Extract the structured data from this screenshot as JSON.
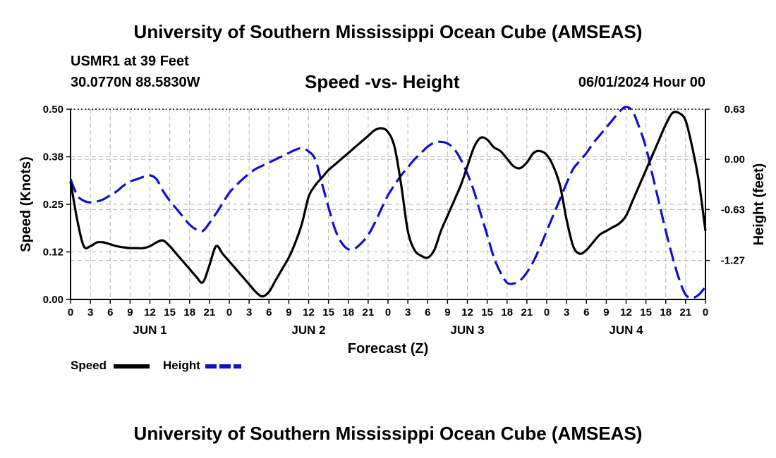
{
  "header": {
    "title": "University of Southern Mississippi Ocean Cube (AMSEAS)",
    "station": "USMR1 at 39 Feet",
    "coords": "30.0770N  88.5830W",
    "chart_title": "Speed -vs- Height",
    "date": "06/01/2024 Hour 00"
  },
  "footer": {
    "title": "University of Southern Mississippi Ocean Cube (AMSEAS)"
  },
  "legend": {
    "speed": "Speed",
    "height": "Height"
  },
  "colors": {
    "speed": "#000000",
    "height": "#1010cc",
    "grid": "#b4b4b4"
  },
  "chart_data": {
    "type": "line",
    "xlabel": "Forecast (Z)",
    "ylabel": "Speed (Knots)",
    "y2label": "Height (feet)",
    "xlim": [
      0,
      96
    ],
    "ylim": [
      0,
      0.5
    ],
    "y2lim": [
      -1.76,
      0.63
    ],
    "x_tick_labels": [
      "0",
      "3",
      "6",
      "9",
      "12",
      "15",
      "18",
      "21",
      "0",
      "3",
      "6",
      "9",
      "12",
      "15",
      "18",
      "21",
      "0",
      "3",
      "6",
      "9",
      "12",
      "15",
      "18",
      "21",
      "0",
      "3",
      "6",
      "9",
      "12",
      "15",
      "18",
      "21",
      "0"
    ],
    "day_labels": [
      {
        "label": "JUN 1",
        "x": 12
      },
      {
        "label": "JUN 2",
        "x": 36
      },
      {
        "label": "JUN 3",
        "x": 60
      },
      {
        "label": "JUN 4",
        "x": 84
      }
    ],
    "y_ticks": [
      {
        "value": 0.0,
        "label": "0.00"
      },
      {
        "value": 0.125,
        "label": "0.12"
      },
      {
        "value": 0.25,
        "label": "0.25"
      },
      {
        "value": 0.375,
        "label": "0.38"
      },
      {
        "value": 0.5,
        "label": "0.50"
      }
    ],
    "y2_ticks": [
      {
        "value": 0.63,
        "label": "0.63"
      },
      {
        "value": 0.0,
        "label": "0.00"
      },
      {
        "value": -0.63,
        "label": "-0.63"
      },
      {
        "value": -1.27,
        "label": "-1.27"
      }
    ],
    "series": [
      {
        "name": "Speed",
        "axis": "left",
        "dash": false,
        "x": [
          0,
          1,
          2,
          3,
          4,
          5,
          6,
          7,
          8,
          9,
          10,
          11,
          12,
          13,
          14,
          15,
          16,
          17,
          18,
          19,
          20,
          21,
          22,
          23,
          24,
          25,
          26,
          27,
          28,
          29,
          30,
          31,
          32,
          33,
          34,
          35,
          36,
          37,
          38,
          39,
          40,
          41,
          42,
          43,
          44,
          45,
          46,
          47,
          48,
          49,
          50,
          51,
          52,
          53,
          54,
          55,
          56,
          57,
          58,
          59,
          60,
          61,
          62,
          63,
          64,
          65,
          66,
          67,
          68,
          69,
          70,
          71,
          72,
          73,
          74,
          75,
          76,
          77,
          78,
          79,
          80,
          81,
          82,
          83,
          84,
          85,
          86,
          87,
          88,
          89,
          90,
          91,
          92,
          93,
          94,
          95,
          96
        ],
        "y": [
          0.31,
          0.21,
          0.14,
          0.14,
          0.15,
          0.15,
          0.145,
          0.14,
          0.137,
          0.135,
          0.135,
          0.135,
          0.14,
          0.15,
          0.155,
          0.14,
          0.12,
          0.1,
          0.08,
          0.06,
          0.045,
          0.09,
          0.14,
          0.12,
          0.1,
          0.08,
          0.06,
          0.04,
          0.02,
          0.008,
          0.02,
          0.05,
          0.08,
          0.11,
          0.15,
          0.2,
          0.27,
          0.3,
          0.32,
          0.34,
          0.355,
          0.37,
          0.385,
          0.4,
          0.415,
          0.43,
          0.445,
          0.45,
          0.44,
          0.4,
          0.3,
          0.18,
          0.13,
          0.115,
          0.11,
          0.13,
          0.18,
          0.22,
          0.26,
          0.3,
          0.35,
          0.4,
          0.425,
          0.42,
          0.4,
          0.39,
          0.37,
          0.35,
          0.345,
          0.36,
          0.385,
          0.39,
          0.38,
          0.35,
          0.3,
          0.21,
          0.14,
          0.12,
          0.13,
          0.15,
          0.17,
          0.18,
          0.19,
          0.2,
          0.22,
          0.26,
          0.3,
          0.34,
          0.38,
          0.42,
          0.46,
          0.49,
          0.49,
          0.47,
          0.4,
          0.31,
          0.18
        ]
      },
      {
        "name": "Height",
        "axis": "right",
        "dash": true,
        "x": [
          0,
          1,
          2,
          3,
          4,
          5,
          6,
          7,
          8,
          9,
          10,
          11,
          12,
          13,
          14,
          15,
          16,
          17,
          18,
          19,
          20,
          21,
          22,
          23,
          24,
          25,
          26,
          27,
          28,
          29,
          30,
          31,
          32,
          33,
          34,
          35,
          36,
          37,
          38,
          39,
          40,
          41,
          42,
          43,
          44,
          45,
          46,
          47,
          48,
          49,
          50,
          51,
          52,
          53,
          54,
          55,
          56,
          57,
          58,
          59,
          60,
          61,
          62,
          63,
          64,
          65,
          66,
          67,
          68,
          69,
          70,
          71,
          72,
          73,
          74,
          75,
          76,
          77,
          78,
          79,
          80,
          81,
          82,
          83,
          84,
          85,
          86,
          87,
          88,
          89,
          90,
          91,
          92,
          93,
          94,
          95,
          96
        ],
        "y": [
          -0.25,
          -0.45,
          -0.52,
          -0.54,
          -0.53,
          -0.5,
          -0.45,
          -0.4,
          -0.33,
          -0.28,
          -0.25,
          -0.22,
          -0.2,
          -0.25,
          -0.4,
          -0.52,
          -0.62,
          -0.72,
          -0.82,
          -0.88,
          -0.9,
          -0.8,
          -0.68,
          -0.55,
          -0.42,
          -0.33,
          -0.25,
          -0.18,
          -0.12,
          -0.08,
          -0.04,
          0.0,
          0.04,
          0.08,
          0.12,
          0.14,
          0.1,
          0.0,
          -0.3,
          -0.6,
          -0.88,
          -1.05,
          -1.13,
          -1.12,
          -1.05,
          -0.95,
          -0.8,
          -0.62,
          -0.45,
          -0.32,
          -0.2,
          -0.1,
          0.0,
          0.08,
          0.16,
          0.21,
          0.22,
          0.2,
          0.13,
          0.0,
          -0.18,
          -0.4,
          -0.68,
          -0.95,
          -1.23,
          -1.42,
          -1.55,
          -1.56,
          -1.52,
          -1.42,
          -1.28,
          -1.1,
          -0.9,
          -0.7,
          -0.5,
          -0.3,
          -0.12,
          -0.02,
          0.08,
          0.2,
          0.3,
          0.4,
          0.5,
          0.6,
          0.66,
          0.6,
          0.4,
          0.15,
          -0.2,
          -0.55,
          -0.9,
          -1.22,
          -1.5,
          -1.7,
          -1.74,
          -1.7,
          -1.6
        ]
      }
    ]
  }
}
